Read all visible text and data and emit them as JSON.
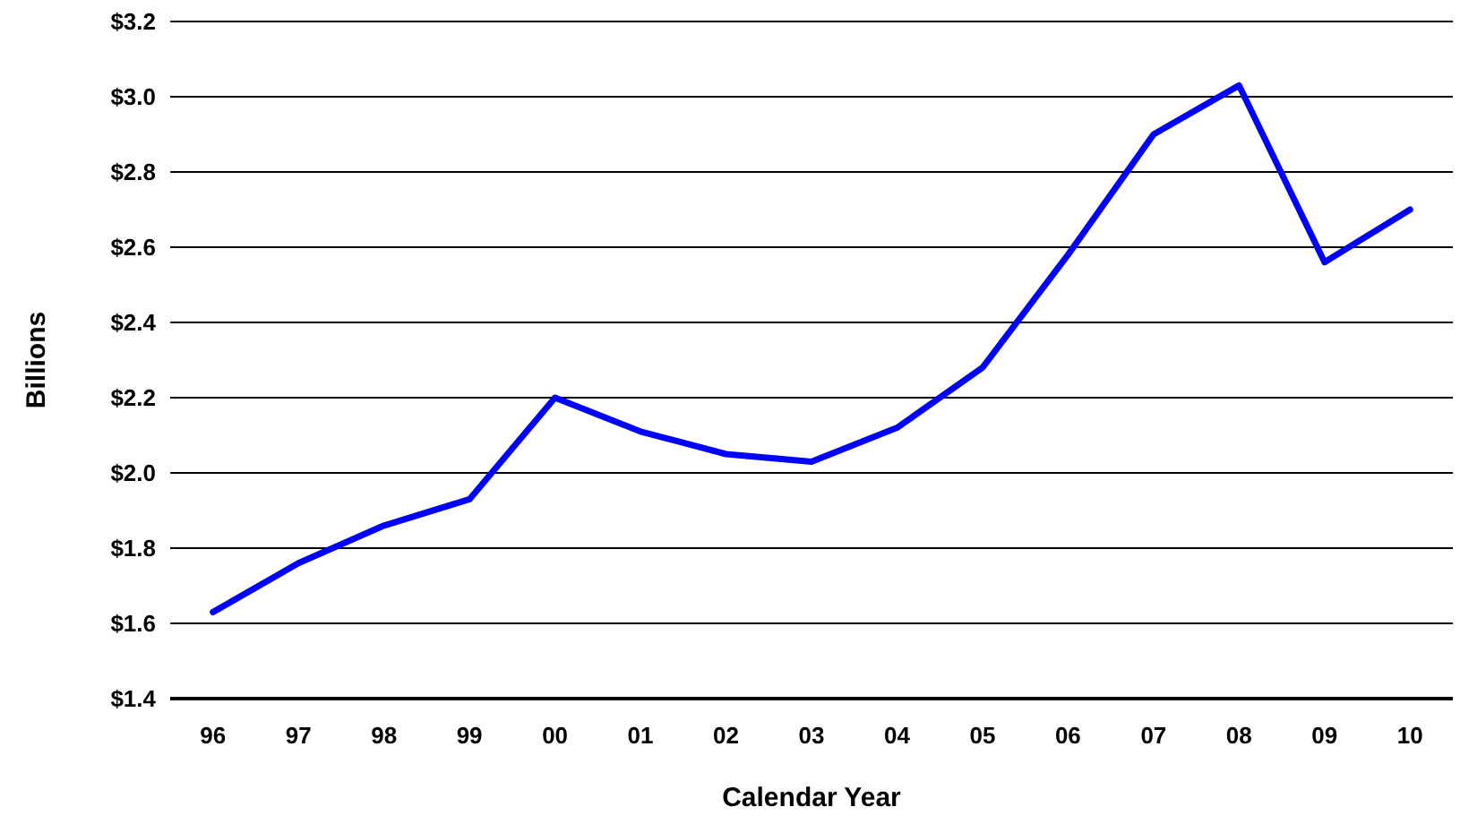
{
  "chart_data": {
    "type": "line",
    "xlabel": "Calendar Year",
    "ylabel": "Billions",
    "categories": [
      "96",
      "97",
      "98",
      "99",
      "00",
      "01",
      "02",
      "03",
      "04",
      "05",
      "06",
      "07",
      "08",
      "09",
      "10"
    ],
    "series": [
      {
        "color": "#0000ff",
        "values": [
          1.63,
          1.76,
          1.86,
          1.93,
          2.2,
          2.11,
          2.05,
          2.03,
          2.12,
          2.28,
          2.58,
          2.9,
          3.03,
          2.56,
          2.7
        ]
      }
    ],
    "ylim": [
      1.4,
      3.2
    ],
    "yticks": [
      {
        "value": 1.4,
        "label": "$1.4"
      },
      {
        "value": 1.6,
        "label": "$1.6"
      },
      {
        "value": 1.8,
        "label": "$1.8"
      },
      {
        "value": 2.0,
        "label": "$2.0"
      },
      {
        "value": 2.2,
        "label": "$2.2"
      },
      {
        "value": 2.4,
        "label": "$2.4"
      },
      {
        "value": 2.6,
        "label": "$2.6"
      },
      {
        "value": 2.8,
        "label": "$2.8"
      },
      {
        "value": 3.0,
        "label": "$3.0"
      },
      {
        "value": 3.2,
        "label": "$3.2"
      }
    ],
    "grid": "y",
    "marker": "none",
    "line_style": "solid"
  }
}
